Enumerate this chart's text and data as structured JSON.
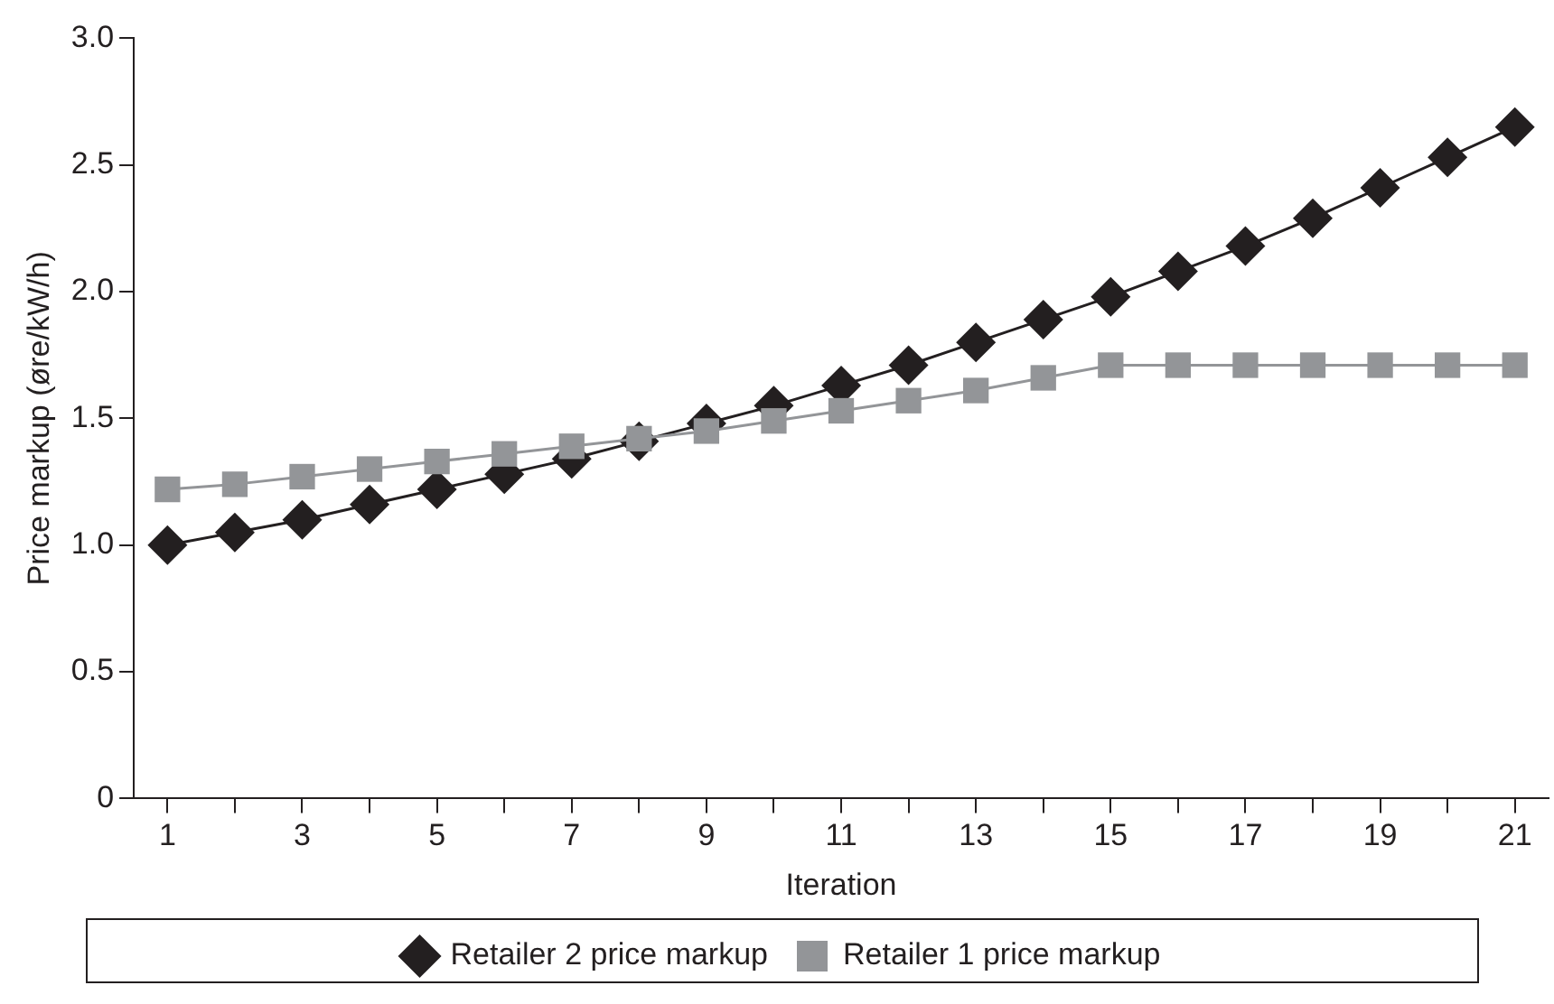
{
  "chart_data": {
    "type": "line",
    "xlabel": "Iteration",
    "ylabel": "Price markup (øre/kW/h)",
    "x": [
      1,
      2,
      3,
      4,
      5,
      6,
      7,
      8,
      9,
      10,
      11,
      12,
      13,
      14,
      15,
      16,
      17,
      18,
      19,
      20,
      21
    ],
    "xlim": [
      0.5,
      21.5
    ],
    "xticks": [
      1,
      {
        "value": 2,
        "label": null
      },
      3,
      {
        "value": 4,
        "label": null
      },
      5,
      {
        "value": 6,
        "label": null
      },
      7,
      {
        "value": 8,
        "label": null
      },
      9,
      {
        "value": 10,
        "label": null
      },
      11,
      {
        "value": 12,
        "label": null
      },
      13,
      {
        "value": 14,
        "label": null
      },
      15,
      {
        "value": 16,
        "label": null
      },
      17,
      {
        "value": 18,
        "label": null
      },
      19,
      {
        "value": 20,
        "label": null
      },
      21
    ],
    "ylim": [
      0,
      3
    ],
    "yticks": [
      0,
      {
        "value": 0.5,
        "label": "0.5"
      },
      {
        "value": 1,
        "label": "1.0"
      },
      {
        "value": 1.5,
        "label": "1.5"
      },
      {
        "value": 2,
        "label": "2.0"
      },
      {
        "value": 2.5,
        "label": "2.5"
      },
      {
        "value": 3,
        "label": "3.0"
      }
    ],
    "legend": "bottom",
    "grid": false,
    "series": [
      {
        "name": "Retailer 2 price markup",
        "color": "#231f20",
        "marker": "diamond",
        "values": [
          1.0,
          1.05,
          1.1,
          1.16,
          1.22,
          1.28,
          1.34,
          1.41,
          1.48,
          1.55,
          1.63,
          1.71,
          1.8,
          1.89,
          1.98,
          2.08,
          2.18,
          2.29,
          2.41,
          2.53,
          2.65
        ]
      },
      {
        "name": "Retailer 1 price markup",
        "color": "#939598",
        "marker": "square",
        "values": [
          1.22,
          1.24,
          1.27,
          1.3,
          1.33,
          1.36,
          1.39,
          1.42,
          1.45,
          1.49,
          1.53,
          1.57,
          1.61,
          1.66,
          1.71,
          1.71,
          1.71,
          1.71,
          1.71,
          1.71,
          1.71
        ]
      }
    ]
  }
}
